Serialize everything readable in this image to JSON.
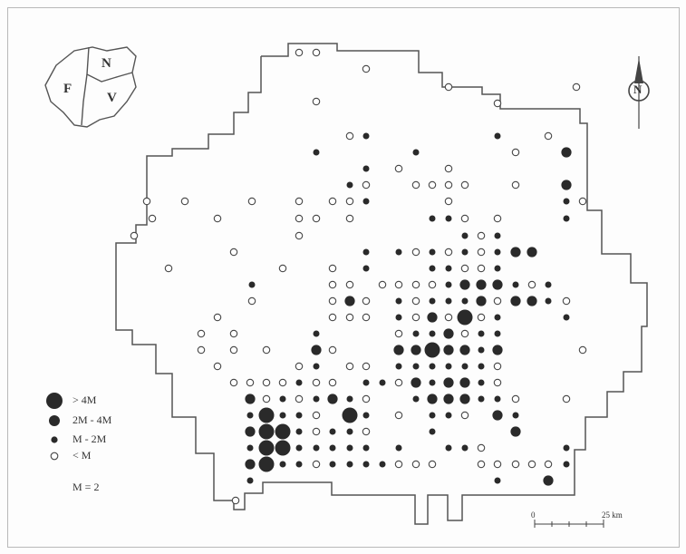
{
  "inset_map": {
    "regions": [
      "F",
      "N",
      "V"
    ]
  },
  "north_arrow_label": "N",
  "legend": {
    "items": [
      {
        "label": "> 4M",
        "symbol": "large-filled"
      },
      {
        "label": "2M - 4M",
        "symbol": "medium-filled"
      },
      {
        "label": "M - 2M",
        "symbol": "small-filled"
      },
      {
        "label": "< M",
        "symbol": "open"
      }
    ],
    "note": "M = 2"
  },
  "scale_bar": {
    "start_label": "0",
    "end_label": "25 km"
  },
  "colors": {
    "symbol": "#2a2a2a",
    "outline": "#555555",
    "frame": "#b9b9b9"
  }
}
